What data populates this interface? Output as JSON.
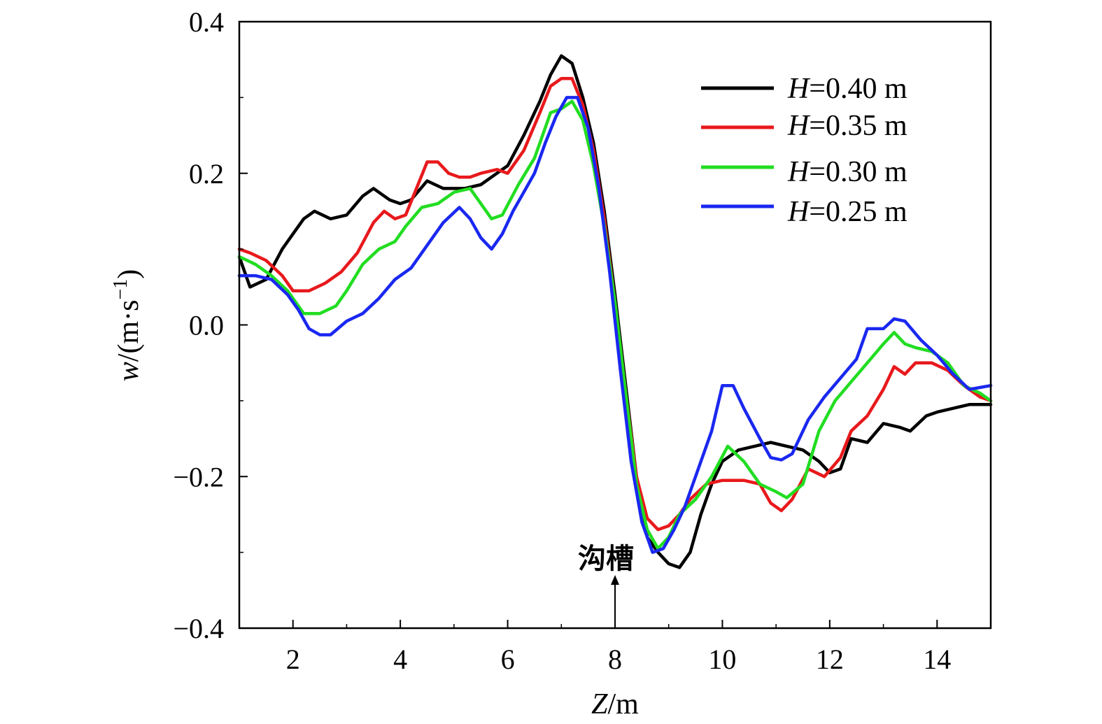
{
  "chart_data": {
    "type": "line",
    "xlabel_var": "Z",
    "xlabel_unit": "/m",
    "ylabel_var": "w",
    "ylabel_unit": "/(m·s",
    "ylabel_exp": "−1",
    "ylabel_close": ")",
    "xlim": [
      1,
      15
    ],
    "ylim": [
      -0.4,
      0.4
    ],
    "xticks": [
      2,
      4,
      6,
      8,
      10,
      12,
      14
    ],
    "xtick_labels": [
      "2",
      "4",
      "6",
      "8",
      "10",
      "12",
      "14"
    ],
    "yticks": [
      -0.4,
      -0.2,
      0.0,
      0.2,
      0.4
    ],
    "ytick_labels": [
      "−0.4",
      "−0.2",
      "0.0",
      "0.2",
      "0.4"
    ],
    "legend_position": "top-right",
    "annotation": {
      "text": "沟槽",
      "x": 8,
      "y": -0.33
    },
    "series": [
      {
        "name_var": "H",
        "name_rest": "=0.40 m",
        "color": "#000000",
        "points": [
          [
            1.0,
            0.09
          ],
          [
            1.2,
            0.05
          ],
          [
            1.5,
            0.06
          ],
          [
            1.8,
            0.1
          ],
          [
            2.0,
            0.12
          ],
          [
            2.2,
            0.14
          ],
          [
            2.4,
            0.15
          ],
          [
            2.7,
            0.14
          ],
          [
            3.0,
            0.145
          ],
          [
            3.3,
            0.17
          ],
          [
            3.5,
            0.18
          ],
          [
            3.8,
            0.165
          ],
          [
            4.0,
            0.16
          ],
          [
            4.2,
            0.165
          ],
          [
            4.5,
            0.19
          ],
          [
            4.8,
            0.18
          ],
          [
            5.2,
            0.18
          ],
          [
            5.5,
            0.185
          ],
          [
            5.8,
            0.2
          ],
          [
            6.0,
            0.21
          ],
          [
            6.3,
            0.25
          ],
          [
            6.6,
            0.295
          ],
          [
            6.8,
            0.33
          ],
          [
            7.0,
            0.355
          ],
          [
            7.2,
            0.345
          ],
          [
            7.4,
            0.3
          ],
          [
            7.6,
            0.24
          ],
          [
            7.8,
            0.15
          ],
          [
            8.0,
            0.04
          ],
          [
            8.2,
            -0.08
          ],
          [
            8.4,
            -0.2
          ],
          [
            8.6,
            -0.28
          ],
          [
            8.8,
            -0.3
          ],
          [
            9.0,
            -0.315
          ],
          [
            9.2,
            -0.32
          ],
          [
            9.4,
            -0.3
          ],
          [
            9.6,
            -0.25
          ],
          [
            9.8,
            -0.21
          ],
          [
            10.0,
            -0.18
          ],
          [
            10.3,
            -0.165
          ],
          [
            10.6,
            -0.16
          ],
          [
            10.9,
            -0.155
          ],
          [
            11.2,
            -0.16
          ],
          [
            11.5,
            -0.165
          ],
          [
            11.8,
            -0.18
          ],
          [
            12.0,
            -0.195
          ],
          [
            12.2,
            -0.19
          ],
          [
            12.4,
            -0.15
          ],
          [
            12.7,
            -0.155
          ],
          [
            13.0,
            -0.13
          ],
          [
            13.3,
            -0.135
          ],
          [
            13.5,
            -0.14
          ],
          [
            13.8,
            -0.12
          ],
          [
            14.0,
            -0.115
          ],
          [
            14.3,
            -0.11
          ],
          [
            14.6,
            -0.105
          ],
          [
            15.0,
            -0.105
          ]
        ]
      },
      {
        "name_var": "H",
        "name_rest": "=0.35 m",
        "color": "#e8191c",
        "points": [
          [
            1.0,
            0.1
          ],
          [
            1.2,
            0.095
          ],
          [
            1.5,
            0.085
          ],
          [
            1.8,
            0.065
          ],
          [
            2.0,
            0.045
          ],
          [
            2.3,
            0.045
          ],
          [
            2.6,
            0.055
          ],
          [
            2.9,
            0.07
          ],
          [
            3.2,
            0.095
          ],
          [
            3.5,
            0.135
          ],
          [
            3.7,
            0.15
          ],
          [
            3.9,
            0.14
          ],
          [
            4.1,
            0.145
          ],
          [
            4.3,
            0.18
          ],
          [
            4.5,
            0.215
          ],
          [
            4.7,
            0.215
          ],
          [
            4.9,
            0.2
          ],
          [
            5.1,
            0.195
          ],
          [
            5.3,
            0.195
          ],
          [
            5.5,
            0.2
          ],
          [
            5.8,
            0.205
          ],
          [
            6.0,
            0.2
          ],
          [
            6.3,
            0.23
          ],
          [
            6.6,
            0.28
          ],
          [
            6.8,
            0.315
          ],
          [
            7.0,
            0.325
          ],
          [
            7.2,
            0.325
          ],
          [
            7.4,
            0.29
          ],
          [
            7.6,
            0.23
          ],
          [
            7.8,
            0.14
          ],
          [
            8.0,
            0.03
          ],
          [
            8.2,
            -0.09
          ],
          [
            8.4,
            -0.2
          ],
          [
            8.6,
            -0.255
          ],
          [
            8.8,
            -0.27
          ],
          [
            9.0,
            -0.265
          ],
          [
            9.2,
            -0.25
          ],
          [
            9.4,
            -0.23
          ],
          [
            9.7,
            -0.21
          ],
          [
            10.0,
            -0.205
          ],
          [
            10.4,
            -0.205
          ],
          [
            10.7,
            -0.21
          ],
          [
            10.9,
            -0.235
          ],
          [
            11.1,
            -0.245
          ],
          [
            11.3,
            -0.23
          ],
          [
            11.6,
            -0.19
          ],
          [
            11.9,
            -0.2
          ],
          [
            12.2,
            -0.175
          ],
          [
            12.4,
            -0.14
          ],
          [
            12.7,
            -0.12
          ],
          [
            13.0,
            -0.085
          ],
          [
            13.2,
            -0.055
          ],
          [
            13.4,
            -0.065
          ],
          [
            13.6,
            -0.05
          ],
          [
            13.9,
            -0.05
          ],
          [
            14.2,
            -0.06
          ],
          [
            14.5,
            -0.08
          ],
          [
            14.8,
            -0.095
          ],
          [
            15.0,
            -0.1
          ]
        ]
      },
      {
        "name_var": "H",
        "name_rest": "=0.30 m",
        "color": "#22dd22",
        "points": [
          [
            1.0,
            0.09
          ],
          [
            1.3,
            0.08
          ],
          [
            1.6,
            0.065
          ],
          [
            1.9,
            0.045
          ],
          [
            2.2,
            0.015
          ],
          [
            2.5,
            0.015
          ],
          [
            2.8,
            0.025
          ],
          [
            3.0,
            0.045
          ],
          [
            3.3,
            0.08
          ],
          [
            3.6,
            0.1
          ],
          [
            3.9,
            0.11
          ],
          [
            4.1,
            0.13
          ],
          [
            4.4,
            0.155
          ],
          [
            4.7,
            0.16
          ],
          [
            5.0,
            0.175
          ],
          [
            5.3,
            0.18
          ],
          [
            5.7,
            0.14
          ],
          [
            5.9,
            0.145
          ],
          [
            6.2,
            0.185
          ],
          [
            6.5,
            0.22
          ],
          [
            6.8,
            0.28
          ],
          [
            7.0,
            0.285
          ],
          [
            7.2,
            0.295
          ],
          [
            7.4,
            0.27
          ],
          [
            7.6,
            0.21
          ],
          [
            7.8,
            0.13
          ],
          [
            8.0,
            0.03
          ],
          [
            8.2,
            -0.09
          ],
          [
            8.4,
            -0.21
          ],
          [
            8.6,
            -0.27
          ],
          [
            8.8,
            -0.295
          ],
          [
            9.0,
            -0.28
          ],
          [
            9.2,
            -0.25
          ],
          [
            9.5,
            -0.23
          ],
          [
            9.8,
            -0.2
          ],
          [
            10.1,
            -0.16
          ],
          [
            10.4,
            -0.18
          ],
          [
            10.7,
            -0.21
          ],
          [
            11.0,
            -0.22
          ],
          [
            11.2,
            -0.228
          ],
          [
            11.5,
            -0.21
          ],
          [
            11.8,
            -0.14
          ],
          [
            12.1,
            -0.1
          ],
          [
            12.4,
            -0.075
          ],
          [
            12.7,
            -0.05
          ],
          [
            13.0,
            -0.025
          ],
          [
            13.2,
            -0.01
          ],
          [
            13.4,
            -0.025
          ],
          [
            13.6,
            -0.03
          ],
          [
            13.9,
            -0.035
          ],
          [
            14.2,
            -0.05
          ],
          [
            14.5,
            -0.08
          ],
          [
            14.8,
            -0.09
          ],
          [
            15.0,
            -0.1
          ]
        ]
      },
      {
        "name_var": "H",
        "name_rest": "=0.25 m",
        "color": "#1a28f0",
        "points": [
          [
            1.0,
            0.065
          ],
          [
            1.3,
            0.065
          ],
          [
            1.6,
            0.06
          ],
          [
            1.9,
            0.04
          ],
          [
            2.1,
            0.02
          ],
          [
            2.3,
            -0.005
          ],
          [
            2.5,
            -0.013
          ],
          [
            2.7,
            -0.013
          ],
          [
            3.0,
            0.005
          ],
          [
            3.3,
            0.015
          ],
          [
            3.6,
            0.035
          ],
          [
            3.9,
            0.06
          ],
          [
            4.2,
            0.075
          ],
          [
            4.5,
            0.105
          ],
          [
            4.8,
            0.135
          ],
          [
            5.1,
            0.155
          ],
          [
            5.3,
            0.14
          ],
          [
            5.5,
            0.115
          ],
          [
            5.7,
            0.1
          ],
          [
            5.9,
            0.12
          ],
          [
            6.1,
            0.15
          ],
          [
            6.3,
            0.175
          ],
          [
            6.5,
            0.2
          ],
          [
            6.7,
            0.24
          ],
          [
            6.9,
            0.275
          ],
          [
            7.1,
            0.3
          ],
          [
            7.3,
            0.3
          ],
          [
            7.5,
            0.26
          ],
          [
            7.7,
            0.18
          ],
          [
            7.9,
            0.07
          ],
          [
            8.1,
            -0.06
          ],
          [
            8.3,
            -0.18
          ],
          [
            8.5,
            -0.26
          ],
          [
            8.7,
            -0.3
          ],
          [
            8.9,
            -0.295
          ],
          [
            9.1,
            -0.27
          ],
          [
            9.3,
            -0.24
          ],
          [
            9.5,
            -0.2
          ],
          [
            9.8,
            -0.14
          ],
          [
            10.0,
            -0.08
          ],
          [
            10.2,
            -0.08
          ],
          [
            10.4,
            -0.11
          ],
          [
            10.7,
            -0.15
          ],
          [
            10.9,
            -0.175
          ],
          [
            11.1,
            -0.178
          ],
          [
            11.3,
            -0.17
          ],
          [
            11.6,
            -0.125
          ],
          [
            11.9,
            -0.095
          ],
          [
            12.2,
            -0.07
          ],
          [
            12.5,
            -0.045
          ],
          [
            12.7,
            -0.005
          ],
          [
            13.0,
            -0.005
          ],
          [
            13.2,
            0.008
          ],
          [
            13.4,
            0.005
          ],
          [
            13.7,
            -0.02
          ],
          [
            14.0,
            -0.04
          ],
          [
            14.3,
            -0.065
          ],
          [
            14.6,
            -0.085
          ],
          [
            15.0,
            -0.08
          ]
        ]
      }
    ]
  }
}
